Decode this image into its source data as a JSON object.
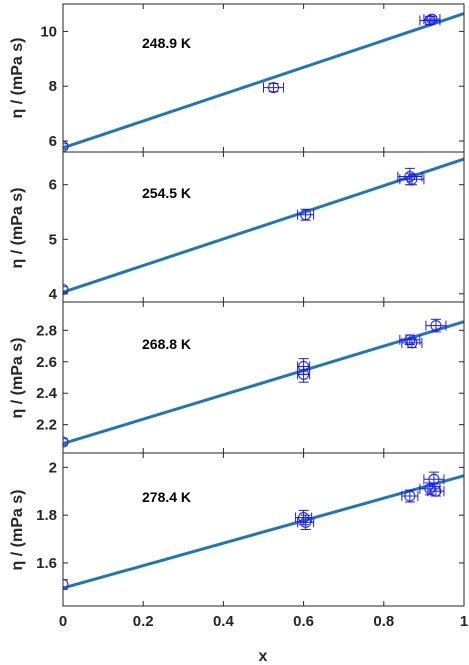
{
  "colors": {
    "fit_line": "#1f77b4",
    "marker": "#1a1aff",
    "axes": "#262626",
    "background": "#ffffff"
  },
  "chart_data": [
    {
      "type": "scatter",
      "annotation": "248.9 K",
      "ylabel": "η / (mPa s)",
      "xlabel": "",
      "xlim": [
        0,
        1
      ],
      "ylim": [
        5.6,
        11
      ],
      "yticks": [
        6,
        8,
        10
      ],
      "ytick_labels": [
        "6",
        "8",
        "10"
      ],
      "xticks": [
        0,
        0.2,
        0.4,
        0.6,
        0.8,
        1
      ],
      "xtick_labels": [
        "",
        "",
        "",
        "",
        "",
        ""
      ],
      "fit": {
        "x": [
          0,
          1
        ],
        "y": [
          5.75,
          10.65
        ]
      },
      "points": [
        {
          "x": 0.0,
          "y": 5.8,
          "xerr": 0.0,
          "yerr": 0.1
        },
        {
          "x": 0.525,
          "y": 7.95,
          "xerr": 0.025,
          "yerr": 0.15
        },
        {
          "x": 0.915,
          "y": 10.4,
          "xerr": 0.025,
          "yerr": 0.15
        },
        {
          "x": 0.92,
          "y": 10.45,
          "xerr": 0.02,
          "yerr": 0.1
        }
      ]
    },
    {
      "type": "scatter",
      "annotation": "254.5 K",
      "ylabel": "η / (mPa s)",
      "xlabel": "",
      "xlim": [
        0,
        1
      ],
      "ylim": [
        3.85,
        6.6
      ],
      "yticks": [
        4,
        5,
        6
      ],
      "ytick_labels": [
        "4",
        "5",
        "6"
      ],
      "xticks": [
        0,
        0.2,
        0.4,
        0.6,
        0.8,
        1
      ],
      "xtick_labels": [
        "",
        "",
        "",
        "",
        "",
        ""
      ],
      "fit": {
        "x": [
          0,
          1
        ],
        "y": [
          4.03,
          6.47
        ]
      },
      "points": [
        {
          "x": 0.0,
          "y": 4.08,
          "xerr": 0.0,
          "yerr": 0.05
        },
        {
          "x": 0.605,
          "y": 5.45,
          "xerr": 0.02,
          "yerr": 0.1
        },
        {
          "x": 0.865,
          "y": 6.15,
          "xerr": 0.03,
          "yerr": 0.15
        },
        {
          "x": 0.87,
          "y": 6.1,
          "xerr": 0.03,
          "yerr": 0.1
        }
      ]
    },
    {
      "type": "scatter",
      "annotation": "268.8 K",
      "ylabel": "η / (mPa s)",
      "xlabel": "",
      "xlim": [
        0,
        1
      ],
      "ylim": [
        2.02,
        2.98
      ],
      "yticks": [
        2.2,
        2.4,
        2.6,
        2.8
      ],
      "ytick_labels": [
        "2.2",
        "2.4",
        "2.6",
        "2.8"
      ],
      "xticks": [
        0,
        0.2,
        0.4,
        0.6,
        0.8,
        1
      ],
      "xtick_labels": [
        "",
        "",
        "",
        "",
        "",
        ""
      ],
      "fit": {
        "x": [
          0,
          1
        ],
        "y": [
          2.08,
          2.855
        ]
      },
      "points": [
        {
          "x": 0.0,
          "y": 2.09,
          "xerr": 0.0,
          "yerr": 0.02
        },
        {
          "x": 0.6,
          "y": 2.57,
          "xerr": 0.015,
          "yerr": 0.05
        },
        {
          "x": 0.6,
          "y": 2.52,
          "xerr": 0.015,
          "yerr": 0.05
        },
        {
          "x": 0.865,
          "y": 2.74,
          "xerr": 0.025,
          "yerr": 0.03
        },
        {
          "x": 0.87,
          "y": 2.72,
          "xerr": 0.025,
          "yerr": 0.03
        },
        {
          "x": 0.93,
          "y": 2.83,
          "xerr": 0.025,
          "yerr": 0.04
        }
      ]
    },
    {
      "type": "scatter",
      "annotation": "278.4 K",
      "ylabel": "η / (mPa s)",
      "xlabel": "x",
      "xlim": [
        0,
        1
      ],
      "ylim": [
        1.42,
        2.06
      ],
      "yticks": [
        1.6,
        1.8,
        2.0
      ],
      "ytick_labels": [
        "1.6",
        "1.8",
        "2"
      ],
      "xticks": [
        0,
        0.2,
        0.4,
        0.6,
        0.8,
        1
      ],
      "xtick_labels": [
        "0",
        "0.2",
        "0.4",
        "0.6",
        "0.8",
        "1"
      ],
      "fit": {
        "x": [
          0,
          1
        ],
        "y": [
          1.495,
          1.965
        ]
      },
      "points": [
        {
          "x": 0.0,
          "y": 1.51,
          "xerr": 0.0,
          "yerr": 0.02
        },
        {
          "x": 0.6,
          "y": 1.79,
          "xerr": 0.02,
          "yerr": 0.03
        },
        {
          "x": 0.605,
          "y": 1.77,
          "xerr": 0.02,
          "yerr": 0.03
        },
        {
          "x": 0.865,
          "y": 1.88,
          "xerr": 0.02,
          "yerr": 0.025
        },
        {
          "x": 0.915,
          "y": 1.91,
          "xerr": 0.025,
          "yerr": 0.025
        },
        {
          "x": 0.925,
          "y": 1.95,
          "xerr": 0.025,
          "yerr": 0.03
        },
        {
          "x": 0.93,
          "y": 1.9,
          "xerr": 0.02,
          "yerr": 0.02
        }
      ]
    }
  ]
}
